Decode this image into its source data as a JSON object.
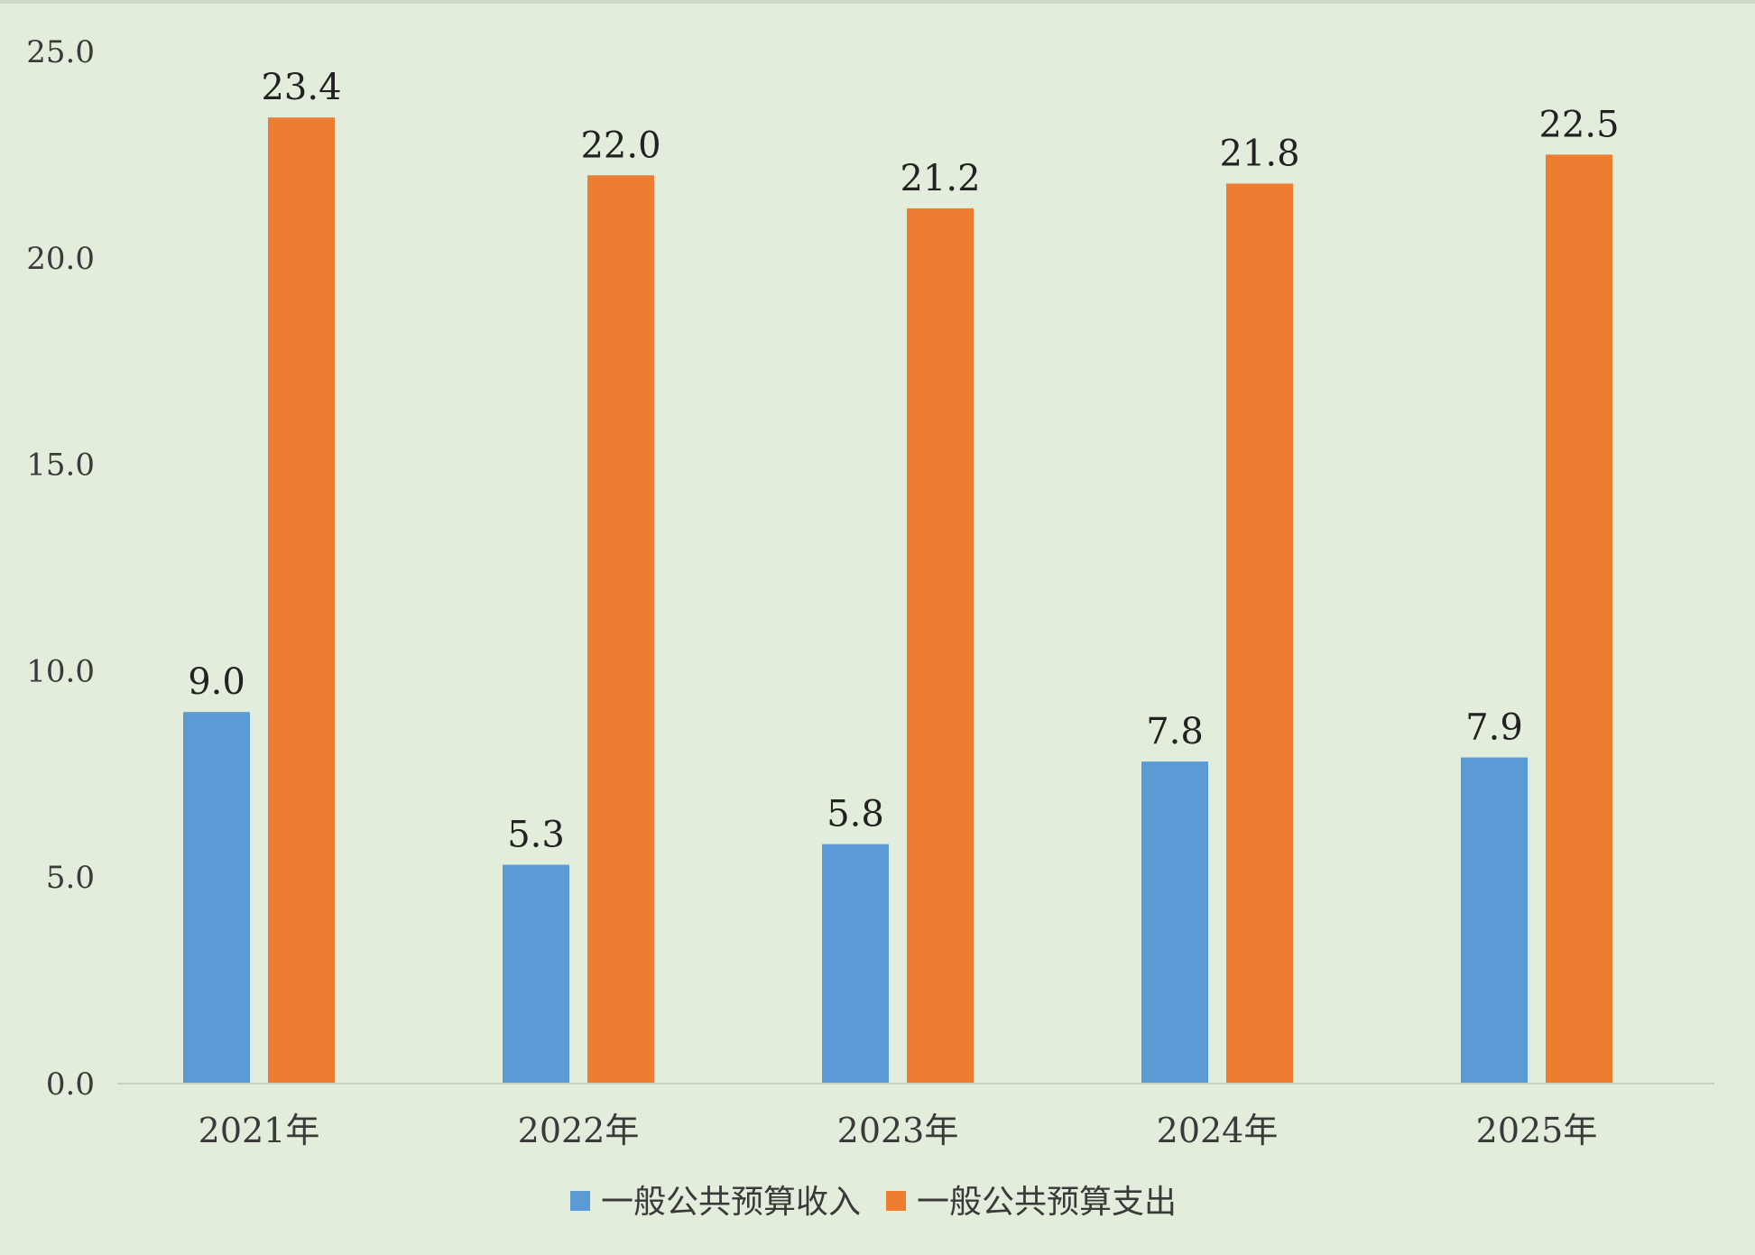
{
  "chart_data": {
    "type": "bar",
    "categories": [
      "2021年",
      "2022年",
      "2023年",
      "2024年",
      "2025年"
    ],
    "series": [
      {
        "name": "一般公共预算收入",
        "values": [
          9.0,
          5.3,
          5.8,
          7.8,
          7.9
        ],
        "color": "#5b9bd5"
      },
      {
        "name": "一般公共预算支出",
        "values": [
          23.4,
          22.0,
          21.2,
          21.8,
          22.5
        ],
        "color": "#ed7d31"
      }
    ],
    "data_labels": [
      [
        "9.0",
        "5.3",
        "5.8",
        "7.8",
        "7.9"
      ],
      [
        "23.4",
        "22.0",
        "21.2",
        "21.8",
        "22.5"
      ]
    ],
    "y_ticks": [
      "0.0",
      "5.0",
      "10.0",
      "15.0",
      "20.0",
      "25.0"
    ],
    "ylim": [
      0,
      25
    ],
    "grid": false,
    "legend_position": "bottom",
    "background": "#e2eddb"
  }
}
